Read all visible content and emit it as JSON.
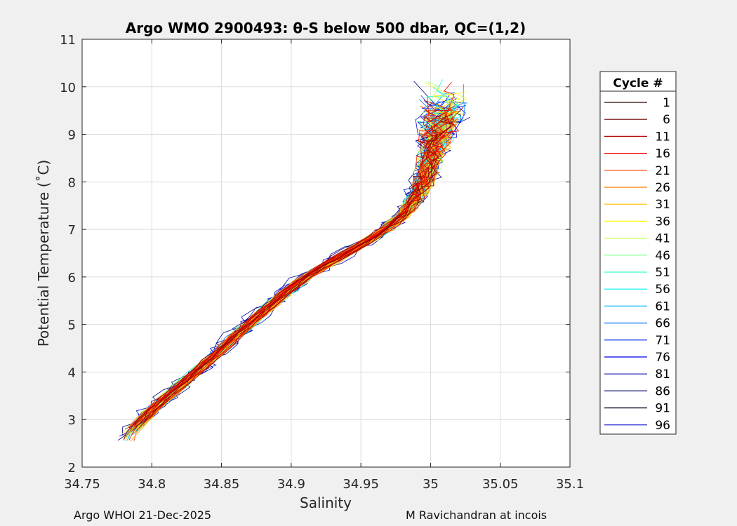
{
  "chart_data": {
    "type": "line",
    "title": "Argo WMO 2900493: θ-S below 500 dbar,  QC=(1,2)",
    "xlabel": "Salinity",
    "ylabel": "Potential Temperature (˚C)",
    "xlim": [
      34.75,
      35.1
    ],
    "ylim": [
      2,
      11
    ],
    "xticks": [
      34.75,
      34.8,
      34.85,
      34.9,
      34.95,
      35,
      35.05,
      35.1
    ],
    "xtick_labels": [
      "34.75",
      "34.8",
      "34.85",
      "34.9",
      "34.95",
      "35",
      "35.05",
      "35.1"
    ],
    "yticks": [
      2,
      3,
      4,
      5,
      6,
      7,
      8,
      9,
      10,
      11
    ],
    "ytick_labels": [
      "2",
      "3",
      "4",
      "5",
      "6",
      "7",
      "8",
      "9",
      "10",
      "11"
    ],
    "grid": true,
    "colormap": "jet",
    "legend": {
      "title": "Cycle #",
      "position": "right",
      "entries": [
        "1",
        "6",
        "11",
        "16",
        "21",
        "26",
        "31",
        "36",
        "41",
        "46",
        "51",
        "56",
        "61",
        "66",
        "71",
        "76",
        "81",
        "86",
        "91",
        "96"
      ],
      "colors": [
        "#2a0000",
        "#6a0000",
        "#b20000",
        "#f50000",
        "#ff3500",
        "#ff7800",
        "#ffbc00",
        "#fcfd03",
        "#bdff42",
        "#7aff85",
        "#37ffc8",
        "#00f4ff",
        "#00b0ff",
        "#006cff",
        "#0029ff",
        "#0000e9",
        "#0000a6",
        "#000064",
        "#000022",
        "#1a1acc"
      ]
    },
    "envelope": {
      "description": "Approximate core theta-S relation followed by all cycles",
      "salinity": [
        34.782,
        34.8,
        34.83,
        34.86,
        34.885,
        34.91,
        34.94,
        34.965,
        34.98,
        34.99,
        34.995,
        35.0,
        35.005,
        35.01
      ],
      "theta": [
        2.65,
        3.2,
        3.95,
        4.75,
        5.4,
        6.0,
        6.5,
        6.95,
        7.3,
        7.7,
        8.0,
        8.5,
        9.0,
        9.5
      ]
    },
    "series_note": "One theta-S profile per cycle (1-96), colored by cycle number"
  },
  "footer": {
    "left": "Argo WHOI 21-Dec-2025",
    "right": "M Ravichandran at incois"
  }
}
